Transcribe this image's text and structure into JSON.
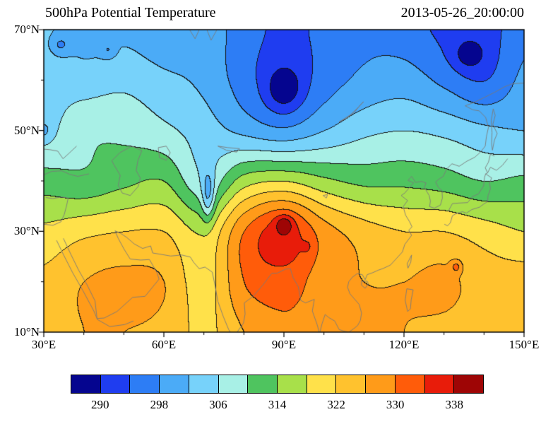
{
  "chart_data": {
    "type": "heatmap",
    "title": "500hPa Potential Temperature",
    "timestamp": "2013-05-26_20:00:00",
    "x": {
      "min": 30,
      "max": 150,
      "ticks": [
        {
          "value": 30,
          "label": "30°E"
        },
        {
          "value": 60,
          "label": "60°E"
        },
        {
          "value": 90,
          "label": "90°E"
        },
        {
          "value": 120,
          "label": "120°E"
        },
        {
          "value": 150,
          "label": "150°E"
        }
      ]
    },
    "y": {
      "min": 10,
      "max": 70,
      "ticks": [
        {
          "value": 70,
          "label": "70°N"
        },
        {
          "value": 50,
          "label": "50°N"
        },
        {
          "value": 30,
          "label": "30°N"
        },
        {
          "value": 10,
          "label": "10°N"
        }
      ]
    },
    "levels": [
      290,
      294,
      298,
      302,
      306,
      310,
      314,
      318,
      322,
      326,
      330,
      334,
      338
    ],
    "palette": [
      "#05058f",
      "#1f3df0",
      "#2d7df5",
      "#4babf7",
      "#77d2fa",
      "#a8f0e6",
      "#4fc45f",
      "#a8e04a",
      "#ffe14a",
      "#ffc22e",
      "#ff9b19",
      "#ff5c0a",
      "#e81c0a",
      "#9e0505"
    ],
    "colorbar_labels": [
      "290",
      "298",
      "306",
      "314",
      "322",
      "330",
      "338"
    ],
    "contour_line_color": "#141414",
    "coastline_color": "#7a7a7a",
    "grid": {
      "lons": [
        30,
        40,
        50,
        60,
        70,
        80,
        90,
        100,
        110,
        120,
        130,
        140,
        150
      ],
      "lats": [
        70,
        60,
        50,
        40,
        30,
        20,
        10
      ],
      "values": [
        [
          303,
          300,
          301,
          299,
          300,
          296,
          293,
          295,
          297,
          296,
          293,
          292,
          297
        ],
        [
          305,
          304,
          305,
          303,
          301,
          296,
          292,
          296,
          299,
          300,
          297,
          294,
          299
        ],
        [
          305,
          309,
          309,
          307,
          304,
          301,
          299,
          302,
          305,
          306,
          305,
          303,
          302
        ],
        [
          312,
          311,
          313,
          314,
          307,
          316,
          318,
          315,
          313,
          313,
          312,
          310,
          311
        ],
        [
          319,
          321,
          322,
          322,
          318,
          330,
          336,
          328,
          324,
          322,
          322,
          320,
          318
        ],
        [
          323,
          326,
          327,
          326,
          320,
          330,
          332,
          328,
          326,
          326,
          327,
          324,
          324
        ],
        [
          324,
          326,
          326,
          325,
          321,
          326,
          329,
          328,
          327,
          326,
          325,
          324,
          325
        ]
      ]
    },
    "features": [
      {
        "lon": 90,
        "lat": 58,
        "amp": -6,
        "rx": 4.5,
        "ry": 4
      },
      {
        "lon": 136,
        "lat": 65,
        "amp": -5,
        "rx": 4,
        "ry": 3
      },
      {
        "lon": 34,
        "lat": 67,
        "amp": -5,
        "rx": 2.5,
        "ry": 2
      },
      {
        "lon": 46,
        "lat": 66,
        "amp": -4,
        "rx": 1.8,
        "ry": 1.5
      },
      {
        "lon": 30,
        "lat": 50,
        "amp": -4,
        "rx": 2,
        "ry": 2
      },
      {
        "lon": 71,
        "lat": 37,
        "amp": -9,
        "rx": 1.6,
        "ry": 5
      },
      {
        "lon": 90,
        "lat": 31.5,
        "amp": 7,
        "rx": 2.2,
        "ry": 1.8
      },
      {
        "lon": 95.5,
        "lat": 27,
        "amp": 4,
        "rx": 1.2,
        "ry": 1
      },
      {
        "lon": 133,
        "lat": 23,
        "amp": 6,
        "rx": 1.3,
        "ry": 1.2
      }
    ],
    "coastlines": [
      [
        [
          30,
          41.2
        ],
        [
          32,
          41.9
        ],
        [
          34.5,
          42
        ],
        [
          36.5,
          41.3
        ],
        [
          38.5,
          40.9
        ],
        [
          41.3,
          41.4
        ]
      ],
      [
        [
          30,
          46.3
        ],
        [
          31.5,
          46.2
        ],
        [
          33.5,
          45.9
        ],
        [
          34.8,
          44.4
        ],
        [
          36.2,
          45.4
        ],
        [
          38.2,
          46.9
        ]
      ],
      [
        [
          30,
          31.4
        ],
        [
          32.3,
          31.2
        ],
        [
          34.3,
          31.9
        ],
        [
          35.1,
          33.3
        ],
        [
          35.7,
          35.1
        ],
        [
          36.1,
          36.6
        ],
        [
          34.5,
          36.8
        ],
        [
          32.2,
          36.5
        ],
        [
          30.5,
          36.7
        ]
      ],
      [
        [
          33.2,
          28.2
        ],
        [
          34.9,
          25.4
        ],
        [
          37.2,
          21.8
        ],
        [
          39.8,
          18.2
        ],
        [
          42.5,
          14.2
        ],
        [
          43.4,
          12.5
        ],
        [
          46.5,
          11.1
        ],
        [
          50.2,
          11.5
        ],
        [
          52.4,
          12.2
        ]
      ],
      [
        [
          34.9,
          28.6
        ],
        [
          36.6,
          25.7
        ],
        [
          38.7,
          22.3
        ],
        [
          40.8,
          19.4
        ],
        [
          42.8,
          16.2
        ],
        [
          43.3,
          12.7
        ],
        [
          45.1,
          12.8
        ],
        [
          48.3,
          14.1
        ],
        [
          52.2,
          16.9
        ],
        [
          55.3,
          17.1
        ],
        [
          58.8,
          20.5
        ],
        [
          58.3,
          21.8
        ],
        [
          56.4,
          24.4
        ],
        [
          54.2,
          24.3
        ],
        [
          51.6,
          24.5
        ],
        [
          50.1,
          26.4
        ],
        [
          48.6,
          28.6
        ],
        [
          47.8,
          30.1
        ]
      ],
      [
        [
          47.8,
          30.1
        ],
        [
          49.2,
          29.6
        ],
        [
          50.7,
          28.8
        ],
        [
          52.6,
          27.5
        ],
        [
          54.7,
          26.6
        ],
        [
          56.7,
          27.1
        ],
        [
          57.2,
          25.7
        ],
        [
          59.5,
          25.4
        ],
        [
          61.7,
          25.1
        ],
        [
          64.5,
          25.3
        ],
        [
          66.6,
          24.9
        ],
        [
          67.4,
          23.9
        ]
      ],
      [
        [
          67.4,
          23.9
        ],
        [
          68.8,
          22.6
        ],
        [
          70.3,
          22.9
        ],
        [
          72.1,
          21.9
        ],
        [
          72.8,
          19.2
        ],
        [
          73.5,
          16.1
        ],
        [
          74.9,
          13
        ],
        [
          76.2,
          10.5
        ],
        [
          76.6,
          10
        ]
      ],
      [
        [
          78.3,
          10
        ],
        [
          79.9,
          11.8
        ],
        [
          80.3,
          13.6
        ],
        [
          80.1,
          15.8
        ],
        [
          82.3,
          17.1
        ],
        [
          84.8,
          19.4
        ],
        [
          87,
          21.7
        ],
        [
          88.3,
          21.7
        ],
        [
          89.1,
          22
        ],
        [
          90.4,
          22.5
        ],
        [
          91.6,
          22.6
        ],
        [
          92.3,
          20.8
        ],
        [
          93.6,
          19
        ],
        [
          94.2,
          16.3
        ],
        [
          95.4,
          15.8
        ],
        [
          97.6,
          16.5
        ],
        [
          97.1,
          14.2
        ],
        [
          98.3,
          11.5
        ],
        [
          98.8,
          10
        ]
      ],
      [
        [
          99,
          10
        ],
        [
          99.5,
          11.6
        ],
        [
          100.3,
          13.5
        ],
        [
          101.2,
          12.9
        ],
        [
          102.7,
          12.2
        ],
        [
          103.8,
          10.5
        ],
        [
          105,
          10.2
        ],
        [
          106.2,
          10
        ]
      ],
      [
        [
          106.2,
          10
        ],
        [
          107.3,
          10.6
        ],
        [
          108.4,
          11.3
        ],
        [
          109.1,
          12.3
        ],
        [
          109.4,
          13.8
        ],
        [
          108.8,
          15.5
        ],
        [
          107.6,
          16.6
        ],
        [
          106.5,
          17.6
        ],
        [
          105.9,
          18.9
        ],
        [
          106.2,
          20
        ],
        [
          107.1,
          20.9
        ],
        [
          108.3,
          21.6
        ],
        [
          109.6,
          21.4
        ],
        [
          110.3,
          20.4
        ],
        [
          110.8,
          21.4
        ],
        [
          112.2,
          21.8
        ],
        [
          113.6,
          22.3
        ],
        [
          114.7,
          22.6
        ],
        [
          116.6,
          23.3
        ],
        [
          118.1,
          24.6
        ],
        [
          119.6,
          25.9
        ],
        [
          120.2,
          27.4
        ],
        [
          121.9,
          29.2
        ],
        [
          121.2,
          30.2
        ],
        [
          122,
          30.9
        ],
        [
          121.4,
          31.9
        ],
        [
          120.4,
          33.2
        ],
        [
          119.8,
          34.9
        ],
        [
          120.9,
          36.1
        ],
        [
          119.3,
          37.1
        ],
        [
          120.2,
          37.6
        ],
        [
          121.6,
          38.9
        ],
        [
          122.4,
          39.6
        ],
        [
          121,
          40.1
        ],
        [
          121.9,
          40.9
        ],
        [
          122.9,
          39.7
        ],
        [
          124.4,
          39.9
        ]
      ],
      [
        [
          124.4,
          39.9
        ],
        [
          125.5,
          39.6
        ],
        [
          125.1,
          38.7
        ],
        [
          126.3,
          37.1
        ],
        [
          126.6,
          36
        ],
        [
          126.4,
          34.9
        ],
        [
          127.6,
          34.6
        ],
        [
          129.1,
          35.2
        ],
        [
          129.6,
          36.6
        ],
        [
          129.5,
          38.1
        ],
        [
          128.6,
          38.7
        ],
        [
          127.9,
          39.8
        ],
        [
          128.8,
          40.4
        ],
        [
          129.8,
          40.9
        ],
        [
          130.7,
          42.4
        ]
      ],
      [
        [
          130.7,
          42.4
        ],
        [
          132,
          43.4
        ],
        [
          133.8,
          42.9
        ],
        [
          135.7,
          43.9
        ],
        [
          137.7,
          44.7
        ],
        [
          139.1,
          45.7
        ],
        [
          140.3,
          46.9
        ],
        [
          140.6,
          48.8
        ],
        [
          141.1,
          50.6
        ],
        [
          140.4,
          52.6
        ],
        [
          138.8,
          53.9
        ],
        [
          137.2,
          54.1
        ],
        [
          135.3,
          54.9
        ],
        [
          137.6,
          55.6
        ],
        [
          140.2,
          56.6
        ],
        [
          142.7,
          57.6
        ],
        [
          145.2,
          58.7
        ],
        [
          147.2,
          59.3
        ],
        [
          149.9,
          59.4
        ]
      ],
      [
        [
          142.1,
          46.1
        ],
        [
          142.6,
          48.1
        ],
        [
          143.3,
          49.4
        ],
        [
          142.2,
          51.2
        ],
        [
          142.8,
          53
        ],
        [
          142.3,
          54.3
        ],
        [
          141.8,
          52
        ],
        [
          142,
          49.6
        ],
        [
          141.9,
          47.3
        ],
        [
          142.1,
          46.1
        ]
      ],
      [
        [
          130.1,
          31.4
        ],
        [
          130.9,
          31.1
        ],
        [
          131.6,
          31.7
        ],
        [
          132.1,
          33.1
        ],
        [
          133,
          33.5
        ],
        [
          134.6,
          33.9
        ],
        [
          135.6,
          33.6
        ],
        [
          136.9,
          34.3
        ],
        [
          138.9,
          34.8
        ],
        [
          139.9,
          35.4
        ],
        [
          140.9,
          35.9
        ],
        [
          141,
          37.1
        ],
        [
          141.6,
          38.4
        ],
        [
          141.4,
          39.6
        ],
        [
          141.9,
          40.6
        ],
        [
          140.4,
          41.4
        ],
        [
          140.9,
          41.6
        ],
        [
          141.6,
          42.7
        ],
        [
          143.1,
          42.1
        ],
        [
          144.6,
          43.1
        ],
        [
          145.9,
          44.4
        ]
      ],
      [
        [
          131,
          33.9
        ],
        [
          132.1,
          35.5
        ],
        [
          133.6,
          35.6
        ],
        [
          135.9,
          35.7
        ],
        [
          137.1,
          36.9
        ],
        [
          138.6,
          37.4
        ],
        [
          139.9,
          39
        ],
        [
          140.1,
          40.6
        ],
        [
          140.4,
          41.4
        ]
      ],
      [
        [
          140.9,
          41.6
        ],
        [
          140.3,
          42.6
        ],
        [
          141.1,
          43.7
        ],
        [
          141.6,
          45.3
        ],
        [
          142.6,
          44.9
        ]
      ],
      [
        [
          47,
          44
        ],
        [
          49,
          45.6
        ],
        [
          52,
          46.9
        ],
        [
          54.5,
          46
        ],
        [
          53.5,
          44
        ],
        [
          53.1,
          42
        ],
        [
          54.1,
          40.6
        ],
        [
          53.6,
          38.9
        ],
        [
          51.6,
          37.1
        ],
        [
          49.6,
          37.6
        ],
        [
          48.6,
          39.1
        ],
        [
          49.1,
          41.1
        ],
        [
          47.6,
          43.1
        ],
        [
          47,
          44
        ]
      ],
      [
        [
          58.6,
          46.6
        ],
        [
          60.6,
          46.9
        ],
        [
          61.6,
          45.6
        ],
        [
          60.6,
          44.1
        ],
        [
          58.9,
          44.6
        ],
        [
          58.6,
          46.6
        ]
      ],
      [
        [
          73.5,
          46.9
        ],
        [
          76,
          46.6
        ],
        [
          78.9,
          46.4
        ],
        [
          78.2,
          45.7
        ],
        [
          75.6,
          46.1
        ],
        [
          73.5,
          46.9
        ]
      ],
      [
        [
          103.8,
          51.7
        ],
        [
          105.6,
          52.4
        ],
        [
          107.6,
          53.6
        ],
        [
          109.1,
          55.1
        ],
        [
          109.9,
          55.7
        ],
        [
          108.6,
          54.6
        ],
        [
          106.6,
          53.1
        ],
        [
          104.6,
          52.1
        ],
        [
          103.8,
          51.7
        ]
      ],
      [
        [
          121.9,
          25.3
        ],
        [
          120.8,
          23.6
        ],
        [
          121,
          22.7
        ],
        [
          121.7,
          23.9
        ],
        [
          121.9,
          25.3
        ]
      ],
      [
        [
          109.4,
          20.1
        ],
        [
          110.8,
          20.1
        ],
        [
          111.1,
          19.6
        ],
        [
          110.3,
          18.7
        ],
        [
          109.4,
          19.3
        ],
        [
          109.4,
          20.1
        ]
      ],
      [
        [
          120.3,
          16.3
        ],
        [
          120.7,
          18.6
        ],
        [
          122.3,
          18.4
        ],
        [
          121.8,
          16.4
        ],
        [
          121.6,
          14.6
        ],
        [
          120.9,
          14.1
        ],
        [
          120.3,
          16.3
        ]
      ],
      [
        [
          66.5,
          69.9
        ],
        [
          67.8,
          68.2
        ],
        [
          68.8,
          69.9
        ]
      ],
      [
        [
          70.8,
          69.9
        ],
        [
          71.8,
          67.9
        ],
        [
          73.2,
          69.9
        ]
      ],
      [
        [
          99.8,
          37.1
        ],
        [
          100.9,
          37.3
        ],
        [
          100.6,
          36.6
        ],
        [
          99.8,
          37.1
        ]
      ]
    ]
  }
}
